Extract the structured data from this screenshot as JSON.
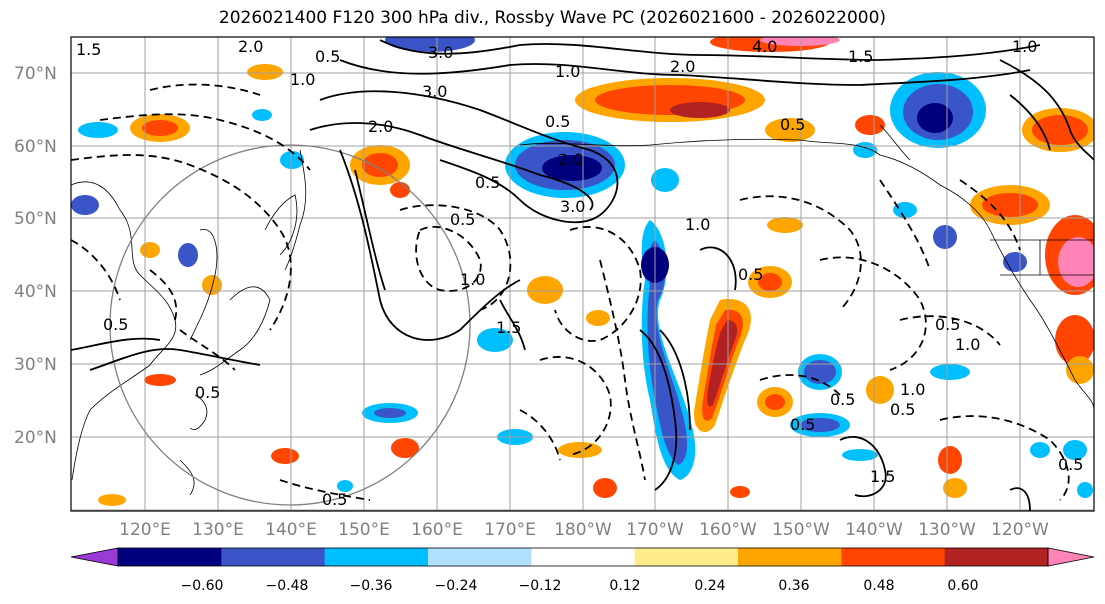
{
  "title": "2026021400 F120 300 hPa div., Rossby Wave PC (2026021600 - 2026022000)",
  "lat_labels": [
    "70°N",
    "60°N",
    "50°N",
    "40°N",
    "30°N",
    "20°N"
  ],
  "lon_labels": [
    "120°E",
    "130°E",
    "140°E",
    "150°E",
    "160°E",
    "170°E",
    "180°W",
    "170°W",
    "160°W",
    "150°W",
    "140°W",
    "130°W",
    "120°W"
  ],
  "colorbar": {
    "ticks": [
      "−0.60",
      "−0.48",
      "−0.36",
      "−0.24",
      "−0.12",
      "0.12",
      "0.24",
      "0.36",
      "0.48",
      "0.60"
    ],
    "colors": [
      "#9a3ad6",
      "#00007f",
      "#3a55c8",
      "#00bfff",
      "#b0e2ff",
      "#ffffff",
      "#ffec8b",
      "#ffa500",
      "#ff4500",
      "#b22222",
      "#ff83b4"
    ]
  },
  "contour_labels": [
    "1.5",
    "2.0",
    "1.0",
    "0.5",
    "3.0",
    "4.0",
    "0.5",
    "2.0",
    "1.5",
    "1.0",
    "0.5",
    "2.0",
    "3.0",
    "3.0",
    "2.0",
    "1.0",
    "0.5",
    "1.0",
    "0.5",
    "1.0",
    "1.5",
    "0.5",
    "0.5",
    "1.0",
    "0.5",
    "1.0",
    "0.5",
    "0.5",
    "0.5",
    "1.5",
    "0.5",
    "0.5",
    "0.5"
  ],
  "colors": {
    "positive": "#ff4500",
    "negative": "#00007f",
    "contour": "#000000",
    "grid": "#a0a0a0",
    "coast": "#000000"
  }
}
